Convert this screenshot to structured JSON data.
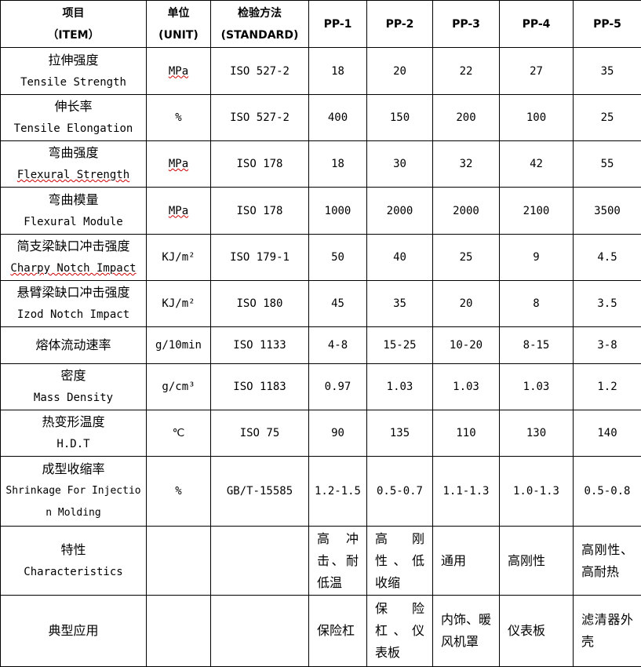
{
  "header": {
    "item_cn": "项目",
    "item_en": "（ITEM）",
    "unit_cn": "单位",
    "unit_en": "(UNIT)",
    "standard_cn": "检验方法",
    "standard_en": "(STANDARD)",
    "grades": [
      "PP-1",
      "PP-2",
      "PP-3",
      "PP-4",
      "PP-5"
    ]
  },
  "rows": [
    {
      "item_cn": "拉伸强度",
      "item_en": "Tensile Strength",
      "unit": "MPa",
      "standard": "ISO 527-2",
      "values": [
        "18",
        "20",
        "22",
        "27",
        "35"
      ]
    },
    {
      "item_cn": "伸长率",
      "item_en": "Tensile Elongation",
      "unit": "%",
      "standard": "ISO 527-2",
      "values": [
        "400",
        "150",
        "200",
        "100",
        "25"
      ]
    },
    {
      "item_cn": "弯曲强度",
      "item_en": "Flexural Strength",
      "unit": "MPa",
      "standard": "ISO 178",
      "values": [
        "18",
        "30",
        "32",
        "42",
        "55"
      ]
    },
    {
      "item_cn": "弯曲模量",
      "item_en": "Flexural Module",
      "unit": "MPa",
      "standard": "ISO 178",
      "values": [
        "1000",
        "2000",
        "2000",
        "2100",
        "3500"
      ]
    },
    {
      "item_cn": "简支梁缺口冲击强度",
      "item_en": "Charpy Notch Impact",
      "unit": "KJ/m²",
      "standard": "ISO 179-1",
      "values": [
        "50",
        "40",
        "25",
        "9",
        "4.5"
      ]
    },
    {
      "item_cn": "悬臂梁缺口冲击强度",
      "item_en": "Izod Notch Impact",
      "unit": "KJ/m²",
      "standard": "ISO 180",
      "values": [
        "45",
        "35",
        "20",
        "8",
        "3.5"
      ]
    },
    {
      "item_cn": "熔体流动速率",
      "item_en": "",
      "unit": "g/10min",
      "standard": "ISO 1133",
      "values": [
        "4-8",
        "15-25",
        "10-20",
        "8-15",
        "3-8"
      ]
    },
    {
      "item_cn": "密度",
      "item_en": "Mass Density",
      "unit": "g/cm³",
      "standard": "ISO 1183",
      "values": [
        "0.97",
        "1.03",
        "1.03",
        "1.03",
        "1.2"
      ]
    },
    {
      "item_cn": "热变形温度",
      "item_en": "H.D.T",
      "unit": "℃",
      "standard": "ISO 75",
      "values": [
        "90",
        "135",
        "110",
        "130",
        "140"
      ]
    },
    {
      "item_cn": "成型收缩率",
      "item_en": "Shrinkage For Injection Molding",
      "unit": "%",
      "standard": "GB/T-15585",
      "values": [
        "1.2-1.5",
        "0.5-0.7",
        "1.1-1.3",
        "1.0-1.3",
        "0.5-0.8"
      ]
    },
    {
      "item_cn": "特性",
      "item_en": "Characteristics",
      "unit": "",
      "standard": "",
      "values": [
        "高冲击、耐低温",
        "高刚性、低收缩",
        "通用",
        "高刚性",
        "高刚性、高耐热"
      ]
    },
    {
      "item_cn": "典型应用",
      "item_en": "",
      "unit": "",
      "standard": "",
      "values": [
        "保险杠",
        "保险杠、仪表板",
        "内饰、暖风机罩",
        "仪表板",
        "滤清器外壳"
      ]
    }
  ]
}
